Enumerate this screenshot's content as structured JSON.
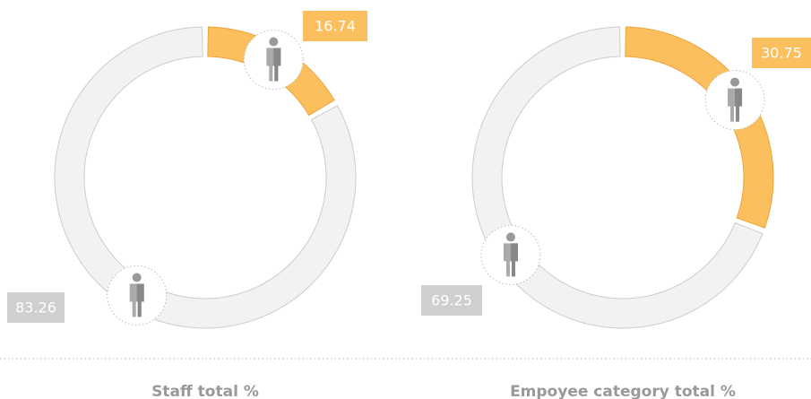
{
  "chart_data": [
    {
      "type": "pie",
      "title": "Staff total %",
      "values": [
        16.74,
        83.26
      ],
      "colors": [
        "#fbbf5e",
        "#f2f2f2"
      ]
    },
    {
      "type": "pie",
      "title": "Empoyee category total %",
      "values": [
        30.75,
        69.25
      ],
      "colors": [
        "#fbbf5e",
        "#f2f2f2"
      ]
    }
  ]
}
